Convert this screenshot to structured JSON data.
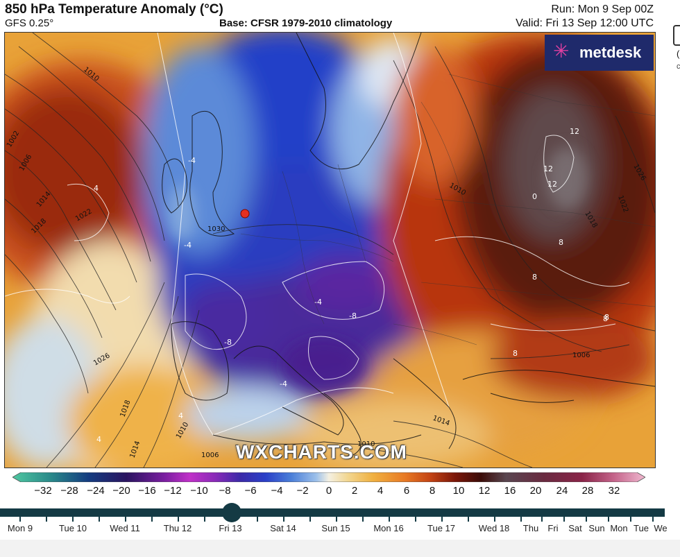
{
  "header": {
    "title": "850 hPa Temperature Anomaly (°C)",
    "model": "GFS 0.25°",
    "base": "Base: CFSR 1979-2010 climatology",
    "run": "Run: Mon 9 Sep 00Z",
    "valid": "Valid: Fri 13 Sep 12:00 UTC"
  },
  "logo": {
    "text": "metdesk",
    "icon": "asterisk-logo-icon"
  },
  "watermark": "WXCHARTS.COM",
  "colorbar": {
    "labels": [
      "−32",
      "−28",
      "−24",
      "−20",
      "−16",
      "−12",
      "−10",
      "−8",
      "−6",
      "−4",
      "−2",
      "0",
      "2",
      "4",
      "6",
      "8",
      "10",
      "12",
      "16",
      "20",
      "24",
      "28",
      "32"
    ]
  },
  "isobar_labels": [
    "1010",
    "1002",
    "1006",
    "1014",
    "1018",
    "1022",
    "1026",
    "1018",
    "1014",
    "1010",
    "1030",
    "1010",
    "1014",
    "1010",
    "1006",
    "1018",
    "1026",
    "1022",
    "1006"
  ],
  "anomaly_labels": [
    "12",
    "12",
    "12",
    "8",
    "8",
    "8",
    "8",
    "-8",
    "-8",
    "-4",
    "-4",
    "-4",
    "-4",
    "4",
    "4",
    "4",
    "8",
    "0"
  ],
  "timeline": {
    "days": [
      "Mon 9",
      "Tue 10",
      "Wed 11",
      "Thu 12",
      "Fri 13",
      "Sat 14",
      "Sun 15",
      "Mon 16",
      "Tue 17",
      "Wed 18",
      "Thu",
      "Fri",
      "Sat",
      "Sun",
      "Mon",
      "Tue",
      "We"
    ],
    "selected": "Fri 13"
  },
  "colors": {
    "timeline": "#143a44",
    "marker": "#e53020",
    "logo_bg": "#1f2a6b"
  }
}
